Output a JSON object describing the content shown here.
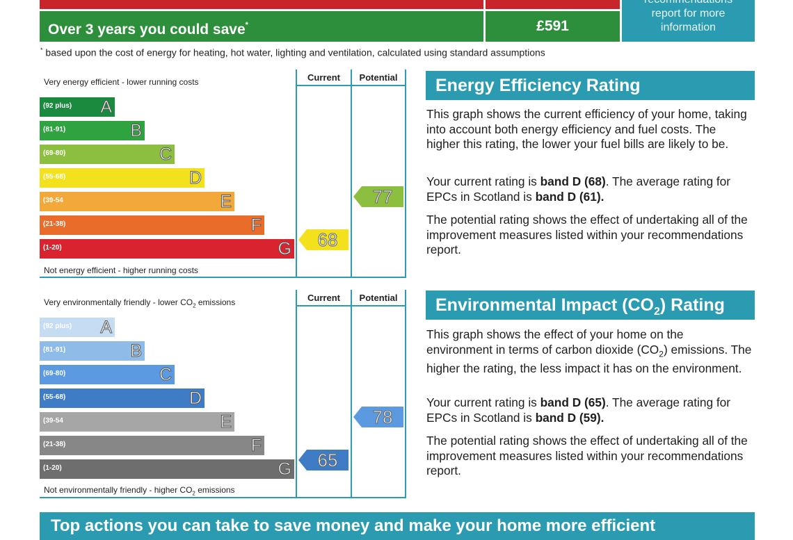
{
  "savings": {
    "label": "Over 3 years you could save",
    "label_mark": "*",
    "value": "£591",
    "recommendations_line1": "recommendations",
    "recommendations_line2": "report for more",
    "recommendations_line3": "information",
    "footnote_mark": "*",
    "footnote": "based upon the cost of energy for heating, hot water, lighting and ventilation, calculated using standard assumptions"
  },
  "energy_chart": {
    "col_current": "Current",
    "col_potential": "Potential",
    "top_text": "Very energy efficient - lower running costs",
    "bottom_text": "Not energy efficient - higher running costs",
    "bands": [
      {
        "range": "(92 plus)",
        "letter": "A",
        "color": "#1a8a3f"
      },
      {
        "range": "(81-91)",
        "letter": "B",
        "color": "#2fa33f"
      },
      {
        "range": "(69-80)",
        "letter": "C",
        "color": "#8cbf3f"
      },
      {
        "range": "(55-68)",
        "letter": "D",
        "color": "#f2e11c"
      },
      {
        "range": "(39-54",
        "letter": "E",
        "color": "#f3a93a"
      },
      {
        "range": "(21-38)",
        "letter": "F",
        "color": "#ea6c2a"
      },
      {
        "range": "(1-20)",
        "letter": "G",
        "color": "#d9232e"
      }
    ],
    "current": {
      "value": "68",
      "band_index": 3,
      "color": "#f2e11c"
    },
    "potential": {
      "value": "77",
      "band_index": 2,
      "color": "#8cbf3f"
    }
  },
  "co2_chart": {
    "col_current": "Current",
    "col_potential": "Potential",
    "top_text_pre": "Very environmentally friendly - lower CO",
    "top_text_sub": "2",
    "top_text_post": " emissions",
    "bottom_text_pre": "Not environmentally friendly - higher CO",
    "bottom_text_sub": "2",
    "bottom_text_post": " emissions",
    "bands": [
      {
        "range": "(92 plus)",
        "letter": "A",
        "color": "#c6dcf2"
      },
      {
        "range": "(81-91)",
        "letter": "B",
        "color": "#8fbbe8"
      },
      {
        "range": "(69-80)",
        "letter": "C",
        "color": "#5b9ae0"
      },
      {
        "range": "(55-68)",
        "letter": "D",
        "color": "#3f7cc6"
      },
      {
        "range": "(39-54",
        "letter": "E",
        "color": "#a6a6a6"
      },
      {
        "range": "(21-38)",
        "letter": "F",
        "color": "#878787"
      },
      {
        "range": "(1-20)",
        "letter": "G",
        "color": "#6e6e6e"
      }
    ],
    "current": {
      "value": "65",
      "band_index": 3,
      "color": "#3f7cc6"
    },
    "potential": {
      "value": "78",
      "band_index": 2,
      "color": "#5b9ae0"
    }
  },
  "energy_panel": {
    "title": "Energy Efficiency Rating",
    "p1": "This graph shows the current efficiency of your home, taking into account both energy efficiency and fuel costs. The higher this rating, the lower your fuel bills are likely to be.",
    "p2_a": "Your current rating is ",
    "p2_b": "band D (68)",
    "p2_c": ". The average rating for EPCs in Scotland is ",
    "p2_d": "band D (61).",
    "p3": "The potential rating shows the effect of undertaking all of the improvement measures listed within your recommendations report."
  },
  "co2_panel": {
    "title_pre": "Environmental Impact (CO",
    "title_sub": "2",
    "title_post": ") Rating",
    "p1_a": "This graph shows the effect of your home on the environment in terms of carbon dioxide (CO",
    "p1_sub": "2",
    "p1_b": ") emissions. The higher the rating, the less impact it has on the environment.",
    "p2_a": "Your current rating is ",
    "p2_b": "band D (65)",
    "p2_c": ". The average rating for EPCs in Scotland is ",
    "p2_d": "band D (59).",
    "p3": "The potential rating shows the effect of undertaking all of the improvement measures listed within your recommendations report."
  },
  "bottom": {
    "title": "Top actions you can take to save money and make your home more efficient"
  }
}
